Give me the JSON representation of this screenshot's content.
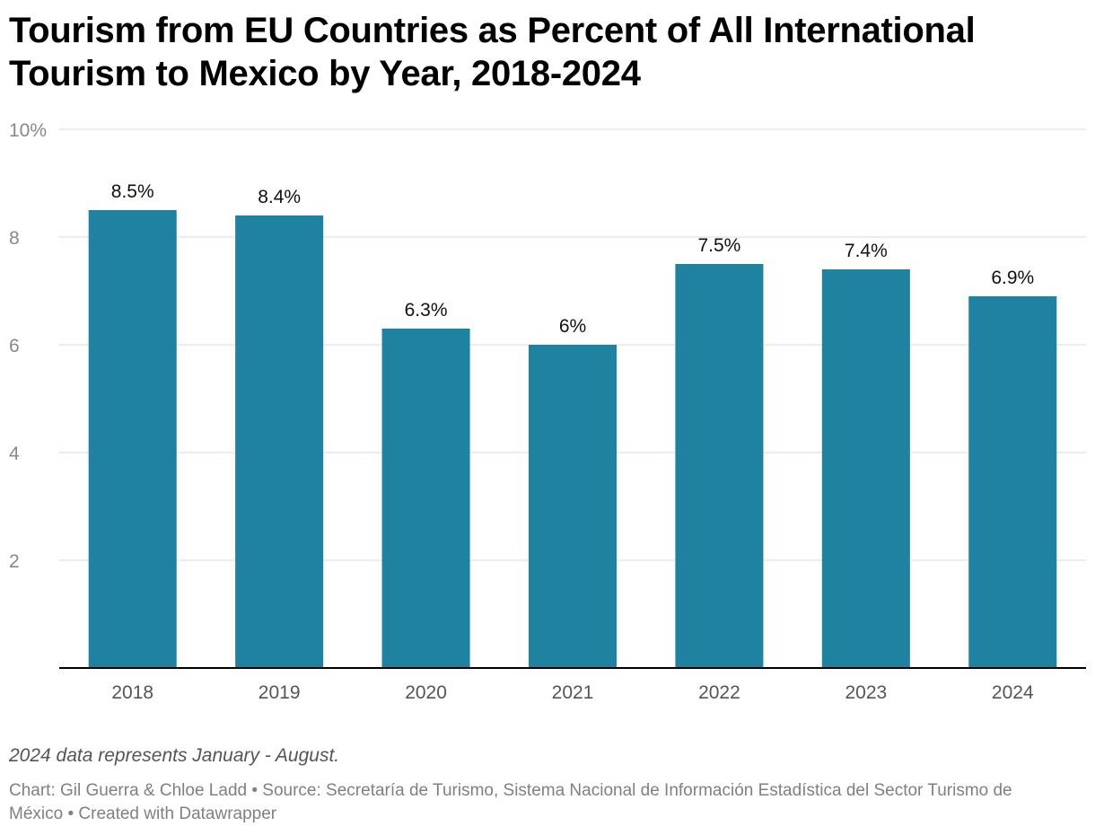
{
  "title": "Tourism from EU Countries as Percent of All International Tourism to Mexico by Year, 2018-2024",
  "note": "2024 data represents January - August.",
  "footer": {
    "credit": "Chart: Gil Guerra & Chloe Ladd",
    "separator": "•",
    "source": "Source: Secretaría de Turismo, Sistema Nacional de Información Estadística del Sector Turismo de México",
    "tool": "Created with Datawrapper"
  },
  "colors": {
    "bar": "#1f82a1",
    "grid": "#e0e0e0",
    "axis": "#000000",
    "tick_text": "#888888",
    "label_text": "#111111"
  },
  "chart_data": {
    "type": "bar",
    "title": "Tourism from EU Countries as Percent of All International Tourism to Mexico by Year, 2018-2024",
    "xlabel": "",
    "ylabel": "",
    "categories": [
      "2018",
      "2019",
      "2020",
      "2021",
      "2022",
      "2023",
      "2024"
    ],
    "values": [
      8.5,
      8.4,
      6.3,
      6.0,
      7.5,
      7.4,
      6.9
    ],
    "value_labels": [
      "8.5%",
      "8.4%",
      "6.3%",
      "6%",
      "7.5%",
      "7.4%",
      "6.9%"
    ],
    "ylim": [
      0,
      10
    ],
    "yticks": [
      2,
      4,
      6,
      8,
      10
    ],
    "ytick_labels": [
      "2",
      "4",
      "6",
      "8",
      "10%"
    ],
    "grid": true
  }
}
